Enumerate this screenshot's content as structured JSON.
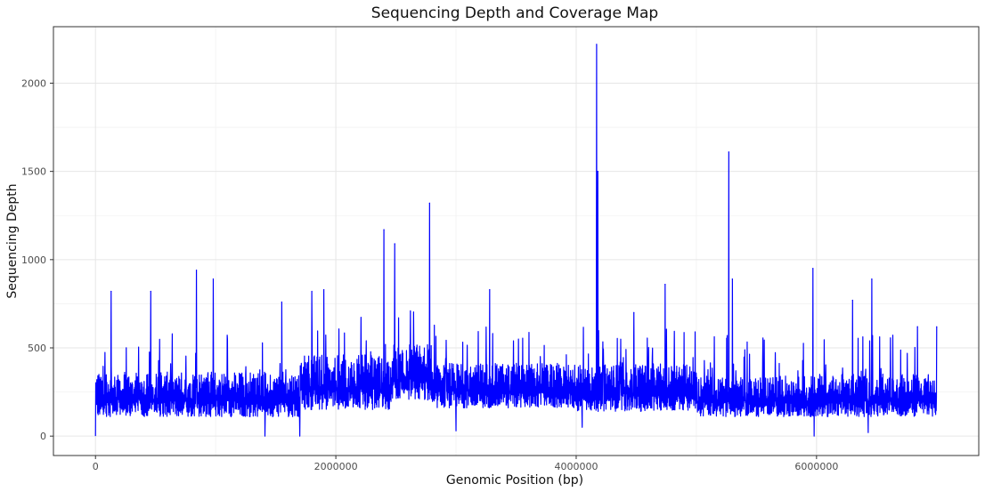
{
  "chart_data": {
    "type": "line",
    "title": "Sequencing Depth and Coverage Map",
    "xlabel": "Genomic Position (bp)",
    "ylabel": "Sequencing Depth",
    "xlim": [
      -350000,
      7350000
    ],
    "ylim": [
      -110,
      2320
    ],
    "x_ticks": [
      0,
      2000000,
      4000000,
      6000000
    ],
    "x_tick_labels": [
      "0",
      "2000000",
      "4000000",
      "6000000"
    ],
    "y_ticks": [
      0,
      500,
      1000,
      1500,
      2000
    ],
    "y_tick_labels": [
      "0",
      "500",
      "1000",
      "1500",
      "2000"
    ],
    "grid": true,
    "series": [
      {
        "name": "depth",
        "color": "#0000ff",
        "x_start": 0,
        "x_end": 7000000,
        "baseline_segments": [
          {
            "x": [
              0,
              1680000
            ],
            "low": 110,
            "high": 330
          },
          {
            "x": [
              1700000,
              2450000
            ],
            "low": 150,
            "high": 420
          },
          {
            "x": [
              2470000,
              2800000
            ],
            "low": 200,
            "high": 480
          },
          {
            "x": [
              2800000,
              4000000
            ],
            "low": 160,
            "high": 380
          },
          {
            "x": [
              4000000,
              5000000
            ],
            "low": 140,
            "high": 370
          },
          {
            "x": [
              5000000,
              6000000
            ],
            "low": 110,
            "high": 310
          },
          {
            "x": [
              6000000,
              7000000
            ],
            "low": 110,
            "high": 320
          }
        ],
        "peaks": [
          {
            "x": 130000,
            "y": 820
          },
          {
            "x": 460000,
            "y": 820
          },
          {
            "x": 840000,
            "y": 940
          },
          {
            "x": 980000,
            "y": 890
          },
          {
            "x": 1550000,
            "y": 760
          },
          {
            "x": 1800000,
            "y": 820
          },
          {
            "x": 1900000,
            "y": 830
          },
          {
            "x": 2400000,
            "y": 1170
          },
          {
            "x": 2490000,
            "y": 1090
          },
          {
            "x": 2780000,
            "y": 1320
          },
          {
            "x": 3280000,
            "y": 830
          },
          {
            "x": 4170000,
            "y": 2220
          },
          {
            "x": 4180000,
            "y": 1500
          },
          {
            "x": 4480000,
            "y": 700
          },
          {
            "x": 4740000,
            "y": 860
          },
          {
            "x": 5270000,
            "y": 1610
          },
          {
            "x": 5300000,
            "y": 890
          },
          {
            "x": 5970000,
            "y": 950
          },
          {
            "x": 6300000,
            "y": 770
          },
          {
            "x": 6460000,
            "y": 890
          },
          {
            "x": 6840000,
            "y": 620
          },
          {
            "x": 7000000,
            "y": 620
          }
        ],
        "dips": [
          {
            "x": 0,
            "y": 0
          },
          {
            "x": 1410000,
            "y": 0
          },
          {
            "x": 1700000,
            "y": 0
          },
          {
            "x": 3000000,
            "y": 30
          },
          {
            "x": 4050000,
            "y": 50
          },
          {
            "x": 5980000,
            "y": 0
          },
          {
            "x": 6430000,
            "y": 20
          }
        ]
      }
    ]
  }
}
